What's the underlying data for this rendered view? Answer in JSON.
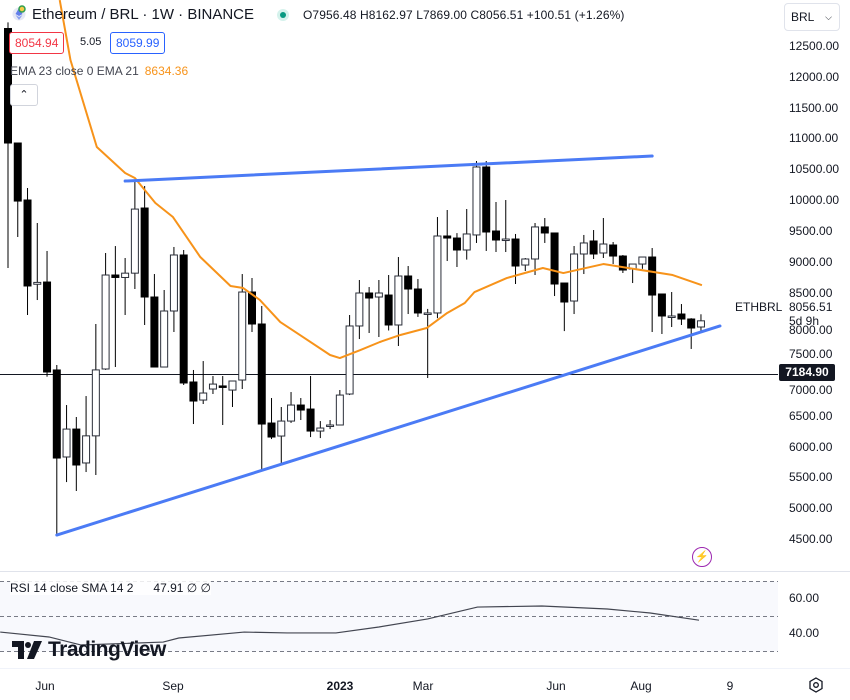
{
  "legend": {
    "title": "Ethereum / BRL · 1W · BINANCE",
    "ohlc": "O7956.48 H8162.97 L7869.00 C8056.51 +100.51 (+1.26%)",
    "bid": "8054.94",
    "spread": "5.05",
    "ask": "8059.99",
    "ema_label": "EMA 23 close 0 EMA 21",
    "ema_value": "8634.36",
    "collapse_icon": "chevron-up"
  },
  "currency_dropdown": {
    "value": "BRL"
  },
  "price_axis": {
    "labels": [
      "12500.00",
      "12000.00",
      "11500.00",
      "11000.00",
      "10500.00",
      "10000.00",
      "9500.00",
      "9000.00",
      "8500.00",
      "8000.00",
      "7500.00",
      "7000.00",
      "6500.00",
      "6000.00",
      "5500.00",
      "5000.00",
      "4500.00"
    ],
    "last_price": "8056.51",
    "countdown": "5d 9h",
    "symbol": "ETHBRL",
    "horizontal_line_label": "7184.90"
  },
  "rsi": {
    "legend": "RSI 14 close SMA 14 2",
    "value": "47.91 ∅ ∅",
    "axis_labels": [
      "60.00",
      "40.00"
    ]
  },
  "time_axis": {
    "labels": [
      "Jun",
      "Sep",
      "2023",
      "Mar",
      "Jun",
      "Aug",
      "9"
    ]
  },
  "branding": {
    "logo_text": "TradingView"
  },
  "colors": {
    "ema": "#f7931a",
    "trendline": "#4b7bf5",
    "bear": "#000000",
    "bull": "#ffffff",
    "rsi_line": "#434651"
  },
  "chart_data": {
    "type": "candlestick",
    "title": "Ethereum / BRL · 1W · BINANCE",
    "ylim": [
      4250,
      13300
    ],
    "candles": [
      [
        12800,
        12900,
        8914,
        10942
      ],
      [
        10942,
        10942,
        9417,
        10000
      ],
      [
        10017,
        10212,
        8151,
        8622
      ],
      [
        8650,
        9644,
        8394,
        8680
      ],
      [
        8686,
        9190,
        7150,
        7226
      ],
      [
        7259,
        7340,
        4580,
        5830
      ],
      [
        5847,
        6690,
        5440,
        6300
      ],
      [
        6300,
        6496,
        5295,
        5717
      ],
      [
        5750,
        6836,
        5603,
        6190
      ],
      [
        6190,
        8005,
        5555,
        7260
      ],
      [
        7275,
        9157,
        7260,
        8800
      ],
      [
        8800,
        9270,
        7307,
        8760
      ],
      [
        8760,
        9076,
        8151,
        8830
      ],
      [
        8830,
        10325,
        8573,
        9870
      ],
      [
        9887,
        10244,
        7989,
        8443
      ],
      [
        8443,
        8816,
        7307,
        7307
      ],
      [
        7307,
        8557,
        7307,
        8216
      ],
      [
        8216,
        9255,
        7875,
        9125
      ],
      [
        9125,
        9206,
        7015,
        7048
      ],
      [
        7064,
        7259,
        6382,
        6755
      ],
      [
        6771,
        7404,
        6707,
        6885
      ],
      [
        6950,
        7161,
        6869,
        7030
      ],
      [
        7000,
        7161,
        6366,
        6990
      ],
      [
        6933,
        7080,
        6658,
        7080
      ],
      [
        7096,
        8816,
        6950,
        8524
      ],
      [
        8524,
        8751,
        7875,
        8005
      ],
      [
        8005,
        8297,
        5636,
        6382
      ],
      [
        6398,
        6804,
        6138,
        6171
      ],
      [
        6187,
        6658,
        5750,
        6430
      ],
      [
        6430,
        6901,
        6400,
        6690
      ],
      [
        6690,
        6804,
        6447,
        6609
      ],
      [
        6625,
        7161,
        6170,
        6268
      ],
      [
        6268,
        6430,
        6154,
        6317
      ],
      [
        6350,
        6447,
        6300,
        6366
      ],
      [
        6366,
        6934,
        6366,
        6852
      ],
      [
        6869,
        8151,
        6852,
        7973
      ],
      [
        7973,
        8719,
        7761,
        8508
      ],
      [
        8508,
        8605,
        7859,
        8427
      ],
      [
        8443,
        8719,
        7794,
        8508
      ],
      [
        8475,
        8800,
        7900,
        7989
      ],
      [
        7989,
        9092,
        7648,
        8784
      ],
      [
        8784,
        8946,
        8167,
        8573
      ],
      [
        8573,
        8735,
        8120,
        8184
      ],
      [
        8184,
        8250,
        7129,
        8184
      ],
      [
        8184,
        9741,
        8100,
        9433
      ],
      [
        9433,
        9855,
        9027,
        9400
      ],
      [
        9400,
        9480,
        8930,
        9206
      ],
      [
        9206,
        9871,
        9050,
        9466
      ],
      [
        9450,
        10650,
        9320,
        10553
      ],
      [
        10553,
        10650,
        9190,
        9498
      ],
      [
        9514,
        9985,
        9173,
        9368
      ],
      [
        9384,
        10017,
        9173,
        9384
      ],
      [
        9384,
        9466,
        8654,
        8946
      ],
      [
        8962,
        9076,
        8865,
        9060
      ],
      [
        9060,
        9644,
        8800,
        9580
      ],
      [
        9580,
        9725,
        9320,
        9482
      ],
      [
        9482,
        9482,
        8459,
        8654
      ],
      [
        8670,
        8670,
        7890,
        8362
      ],
      [
        8378,
        9271,
        8167,
        9141
      ],
      [
        9141,
        9450,
        8816,
        9320
      ],
      [
        9352,
        9530,
        9060,
        9141
      ],
      [
        9157,
        9725,
        9076,
        9303
      ],
      [
        9287,
        9336,
        8978,
        9108
      ],
      [
        9108,
        9125,
        8833,
        8881
      ],
      [
        8897,
        8930,
        8670,
        8978
      ],
      [
        8978,
        9076,
        8900,
        9092
      ],
      [
        9092,
        9238,
        7875,
        8475
      ],
      [
        8492,
        8492,
        7843,
        8135
      ],
      [
        8135,
        8524,
        7956,
        8135
      ],
      [
        8167,
        8329,
        7989,
        8086
      ],
      [
        8086,
        8100,
        7600,
        7940
      ],
      [
        7956.48,
        8162.97,
        7869,
        8056.51
      ]
    ],
    "candle_fields": [
      "open",
      "high",
      "low",
      "close"
    ],
    "ema21": [
      [
        5.3,
        13262
      ],
      [
        6.4,
        12289
      ],
      [
        9.1,
        10877
      ],
      [
        12.0,
        10455
      ],
      [
        13.0,
        10374
      ],
      [
        15.1,
        9969
      ],
      [
        16.9,
        9741
      ],
      [
        19.7,
        9092
      ],
      [
        22.8,
        8622
      ],
      [
        24.1,
        8589
      ],
      [
        25.8,
        8395
      ],
      [
        27.9,
        8037
      ],
      [
        29.9,
        7827
      ],
      [
        33.0,
        7502
      ],
      [
        34.0,
        7453
      ],
      [
        36.1,
        7583
      ],
      [
        38.1,
        7713
      ],
      [
        40.2,
        7827
      ],
      [
        42.9,
        7940
      ],
      [
        45.0,
        8184
      ],
      [
        46.8,
        8346
      ],
      [
        47.8,
        8524
      ],
      [
        51.1,
        8751
      ],
      [
        54.8,
        8914
      ],
      [
        56.9,
        8832
      ],
      [
        61.0,
        8978
      ],
      [
        68.1,
        8800
      ],
      [
        71.1,
        8634.36
      ]
    ],
    "upper_trendline": [
      [
        12.0,
        10325
      ],
      [
        66.0,
        10731
      ]
    ],
    "lower_trendline": [
      [
        5.0,
        4581
      ],
      [
        72.95,
        7973
      ]
    ],
    "horizontal_line": 7184.9,
    "rsi_sma": [
      [
        -0.8,
        41.1
      ],
      [
        4.2,
        38.3
      ],
      [
        7.5,
        33.7
      ],
      [
        15.9,
        35.4
      ],
      [
        17.5,
        37.7
      ],
      [
        24.2,
        41.1
      ],
      [
        28.6,
        40.6
      ],
      [
        33.6,
        40.6
      ],
      [
        38.0,
        44.0
      ],
      [
        43.0,
        48.6
      ],
      [
        48.1,
        55.4
      ],
      [
        54.7,
        56.0
      ],
      [
        61.4,
        54.3
      ],
      [
        65.8,
        52.0
      ],
      [
        70.8,
        47.91
      ]
    ],
    "rsi_levels": [
      70,
      50,
      30
    ]
  }
}
